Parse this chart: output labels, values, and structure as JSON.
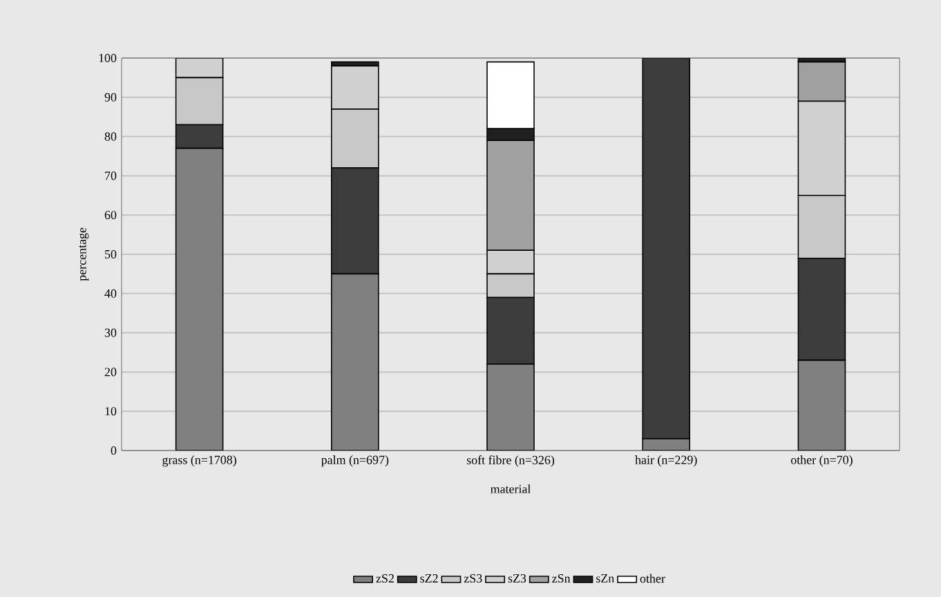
{
  "chart_data": {
    "type": "bar",
    "stacked": true,
    "xlabel": "material",
    "ylabel": "percentage",
    "categories": [
      "grass (n=1708)",
      "palm (n=697)",
      "soft fibre (n=326)",
      "hair (n=229)",
      "other (n=70)"
    ],
    "series": [
      {
        "name": "zS2",
        "color": "#808080",
        "values": [
          77,
          45,
          22,
          3,
          23
        ]
      },
      {
        "name": "sZ2",
        "color": "#3c3c3c",
        "values": [
          6,
          27,
          17,
          97,
          26
        ]
      },
      {
        "name": "zS3",
        "color": "#c8c8c8",
        "values": [
          12,
          15,
          6,
          0,
          16
        ]
      },
      {
        "name": "sZ3",
        "color": "#d0d0d0",
        "values": [
          5,
          11,
          6,
          0,
          24
        ]
      },
      {
        "name": "zSn",
        "color": "#a0a0a0",
        "values": [
          0,
          0,
          28,
          0,
          10
        ]
      },
      {
        "name": "sZn",
        "color": "#202020",
        "values": [
          0,
          1,
          3,
          0,
          1
        ]
      },
      {
        "name": "other",
        "color": "#ffffff",
        "values": [
          0,
          0,
          17,
          0,
          0
        ]
      }
    ],
    "ylim": [
      0,
      100
    ],
    "yticks": [
      0,
      10,
      20,
      30,
      40,
      50,
      60,
      70,
      80,
      90,
      100
    ],
    "grid": "y",
    "legend": "bottom"
  }
}
